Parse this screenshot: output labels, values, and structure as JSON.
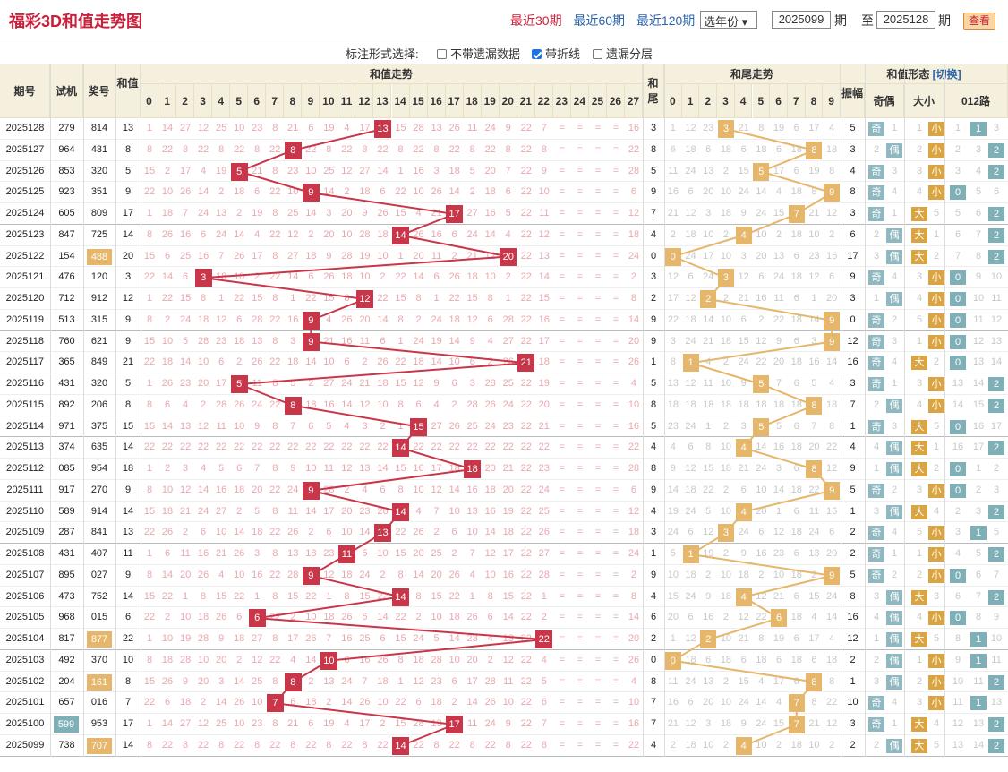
{
  "title": "福彩3D和值走势图",
  "period_links": [
    "最近30期",
    "最近60期",
    "最近120期"
  ],
  "year_select": "选年份",
  "range": {
    "from": "2025099",
    "from_label": "期",
    "to_label": "至",
    "to": "2025128",
    "end_label": "期"
  },
  "search_button": "查看",
  "options": {
    "label": "标注形式选择:",
    "items": [
      {
        "label": "不带遗漏数据",
        "checked": false
      },
      {
        "label": "带折线",
        "checked": true
      },
      {
        "label": "遗漏分层",
        "checked": false
      }
    ]
  },
  "headers": {
    "issue": "期号",
    "trial": "试机",
    "draw": "奖号",
    "sum": "和值",
    "sum_trend": "和值走势",
    "tail": "和尾",
    "tail_trend": "和尾走势",
    "form": "和值形态",
    "switch": "[切换]",
    "amp": "振幅",
    "oe": "奇偶",
    "bs": "大小",
    "r012": "012路"
  },
  "sum_cols": [
    "0",
    "1",
    "2",
    "3",
    "4",
    "5",
    "6",
    "7",
    "8",
    "9",
    "10",
    "11",
    "12",
    "13",
    "14",
    "15",
    "16",
    "17",
    "18",
    "19",
    "20",
    "21",
    "22",
    "23",
    "24",
    "25",
    "26",
    "27"
  ],
  "tail_cols": [
    "0",
    "1",
    "2",
    "3",
    "4",
    "5",
    "6",
    "7",
    "8",
    "9"
  ],
  "rows": [
    [
      "2025128",
      "279",
      "814",
      "13",
      "3",
      "5",
      "奇",
      "小",
      "1"
    ],
    [
      "2025127",
      "964",
      "431",
      "8",
      "8",
      "3",
      "偶",
      "小",
      "2"
    ],
    [
      "2025126",
      "853",
      "320",
      "5",
      "5",
      "4",
      "奇",
      "小",
      "2"
    ],
    [
      "2025125",
      "923",
      "351",
      "9",
      "9",
      "8",
      "奇",
      "小",
      "0"
    ],
    [
      "2025124",
      "605",
      "809",
      "17",
      "7",
      "3",
      "奇",
      "大",
      "2"
    ],
    [
      "2025123",
      "847",
      "725",
      "14",
      "4",
      "6",
      "偶",
      "大",
      "2"
    ],
    [
      "2025122",
      "154",
      "488",
      "20",
      "0",
      "17",
      "偶",
      "大",
      "2"
    ],
    [
      "2025121",
      "476",
      "120",
      "3",
      "3",
      "9",
      "奇",
      "小",
      "0"
    ],
    [
      "2025120",
      "712",
      "912",
      "12",
      "2",
      "3",
      "偶",
      "小",
      "0"
    ],
    [
      "2025119",
      "513",
      "315",
      "9",
      "9",
      "0",
      "奇",
      "小",
      "0"
    ],
    [
      "2025118",
      "760",
      "621",
      "9",
      "9",
      "12",
      "奇",
      "小",
      "0"
    ],
    [
      "2025117",
      "365",
      "849",
      "21",
      "1",
      "16",
      "奇",
      "大",
      "0"
    ],
    [
      "2025116",
      "431",
      "320",
      "5",
      "5",
      "3",
      "奇",
      "小",
      "2"
    ],
    [
      "2025115",
      "892",
      "206",
      "8",
      "8",
      "7",
      "偶",
      "小",
      "2"
    ],
    [
      "2025114",
      "971",
      "375",
      "15",
      "5",
      "1",
      "奇",
      "大",
      "0"
    ],
    [
      "2025113",
      "374",
      "635",
      "14",
      "4",
      "4",
      "偶",
      "大",
      "2"
    ],
    [
      "2025112",
      "085",
      "954",
      "18",
      "8",
      "9",
      "偶",
      "大",
      "0"
    ],
    [
      "2025111",
      "917",
      "270",
      "9",
      "9",
      "5",
      "奇",
      "小",
      "0"
    ],
    [
      "2025110",
      "589",
      "914",
      "14",
      "4",
      "1",
      "偶",
      "大",
      "2"
    ],
    [
      "2025109",
      "287",
      "841",
      "13",
      "3",
      "2",
      "奇",
      "小",
      "1"
    ],
    [
      "2025108",
      "431",
      "407",
      "11",
      "1",
      "2",
      "奇",
      "小",
      "2"
    ],
    [
      "2025107",
      "895",
      "027",
      "9",
      "9",
      "5",
      "奇",
      "小",
      "0"
    ],
    [
      "2025106",
      "473",
      "752",
      "14",
      "4",
      "8",
      "偶",
      "大",
      "2"
    ],
    [
      "2025105",
      "968",
      "015",
      "6",
      "6",
      "16",
      "偶",
      "小",
      "0"
    ],
    [
      "2025104",
      "817",
      "877",
      "22",
      "2",
      "12",
      "偶",
      "大",
      "1"
    ],
    [
      "2025103",
      "492",
      "370",
      "10",
      "0",
      "2",
      "偶",
      "小",
      "1"
    ],
    [
      "2025102",
      "204",
      "161",
      "8",
      "8",
      "1",
      "偶",
      "小",
      "2"
    ],
    [
      "2025101",
      "657",
      "016",
      "7",
      "7",
      "10",
      "奇",
      "小",
      "1"
    ],
    [
      "2025100",
      "599",
      "953",
      "17",
      "7",
      "3",
      "奇",
      "大",
      "2"
    ],
    [
      "2025099",
      "738",
      "707",
      "14",
      "4",
      "2",
      "偶",
      "大",
      "2"
    ]
  ],
  "trial_highlight": [
    "2025100"
  ],
  "draw_highlight": [
    "2025122",
    "2025104",
    "2025102",
    "2025099"
  ],
  "colors": {
    "accent": "#c9213b",
    "hit": "#c93649",
    "tail_hit": "#e6b66a",
    "odd": "#8fb8c0",
    "small": "#d9a441",
    "big": "#d9a441",
    "r0": "#7fb0b8",
    "header_bg": "#f5efde"
  }
}
